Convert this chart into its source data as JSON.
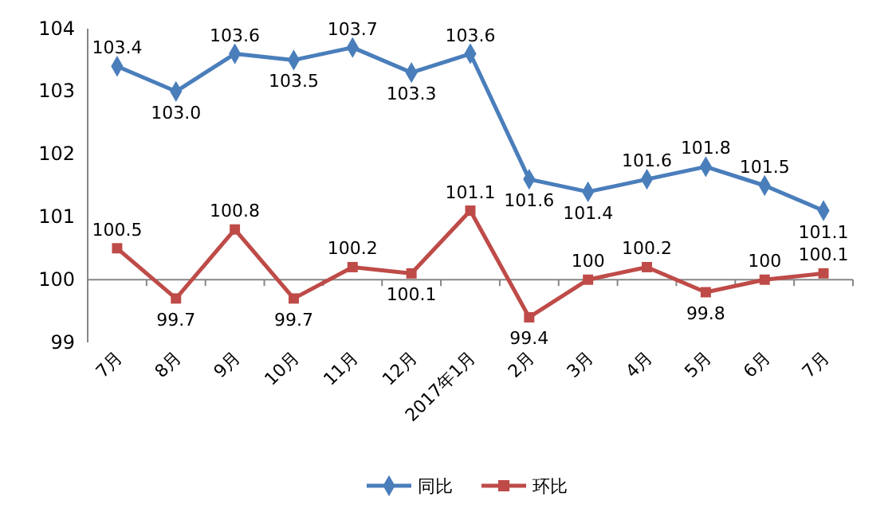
{
  "chart_data": {
    "type": "line",
    "categories": [
      "7月",
      "8月",
      "9月",
      "10月",
      "11月",
      "12月",
      "2017年1月",
      "2月",
      "3月",
      "4月",
      "5月",
      "6月",
      "7月"
    ],
    "series": [
      {
        "name": "同比",
        "color": "#4a7ebb",
        "marker": "diamond",
        "values": [
          103.4,
          103.0,
          103.6,
          103.5,
          103.7,
          103.3,
          103.6,
          101.6,
          101.4,
          101.6,
          101.8,
          101.5,
          101.1
        ],
        "value_labels": [
          "103.4",
          "103.0",
          "103.6",
          "103.5",
          "103.7",
          "103.3",
          "103.6",
          "101.6",
          "101.4",
          "101.6",
          "101.8",
          "101.5",
          "101.1"
        ]
      },
      {
        "name": "环比",
        "color": "#be4b48",
        "marker": "square",
        "values": [
          100.5,
          99.7,
          100.8,
          99.7,
          100.2,
          100.1,
          101.1,
          99.4,
          100,
          100.2,
          99.8,
          100,
          100.1
        ],
        "value_labels": [
          "100.5",
          "99.7",
          "100.8",
          "99.7",
          "100.2",
          "100.1",
          "101.1",
          "99.4",
          "100",
          "100.2",
          "99.8",
          "100",
          "100.1"
        ]
      }
    ],
    "ref_lines": [
      {
        "axis": "y",
        "value": 100,
        "color": "#868686"
      }
    ],
    "ylim": [
      99,
      104
    ],
    "yticks": [
      99,
      100,
      101,
      102,
      103,
      104
    ],
    "legend": "bottom",
    "grid": false
  }
}
